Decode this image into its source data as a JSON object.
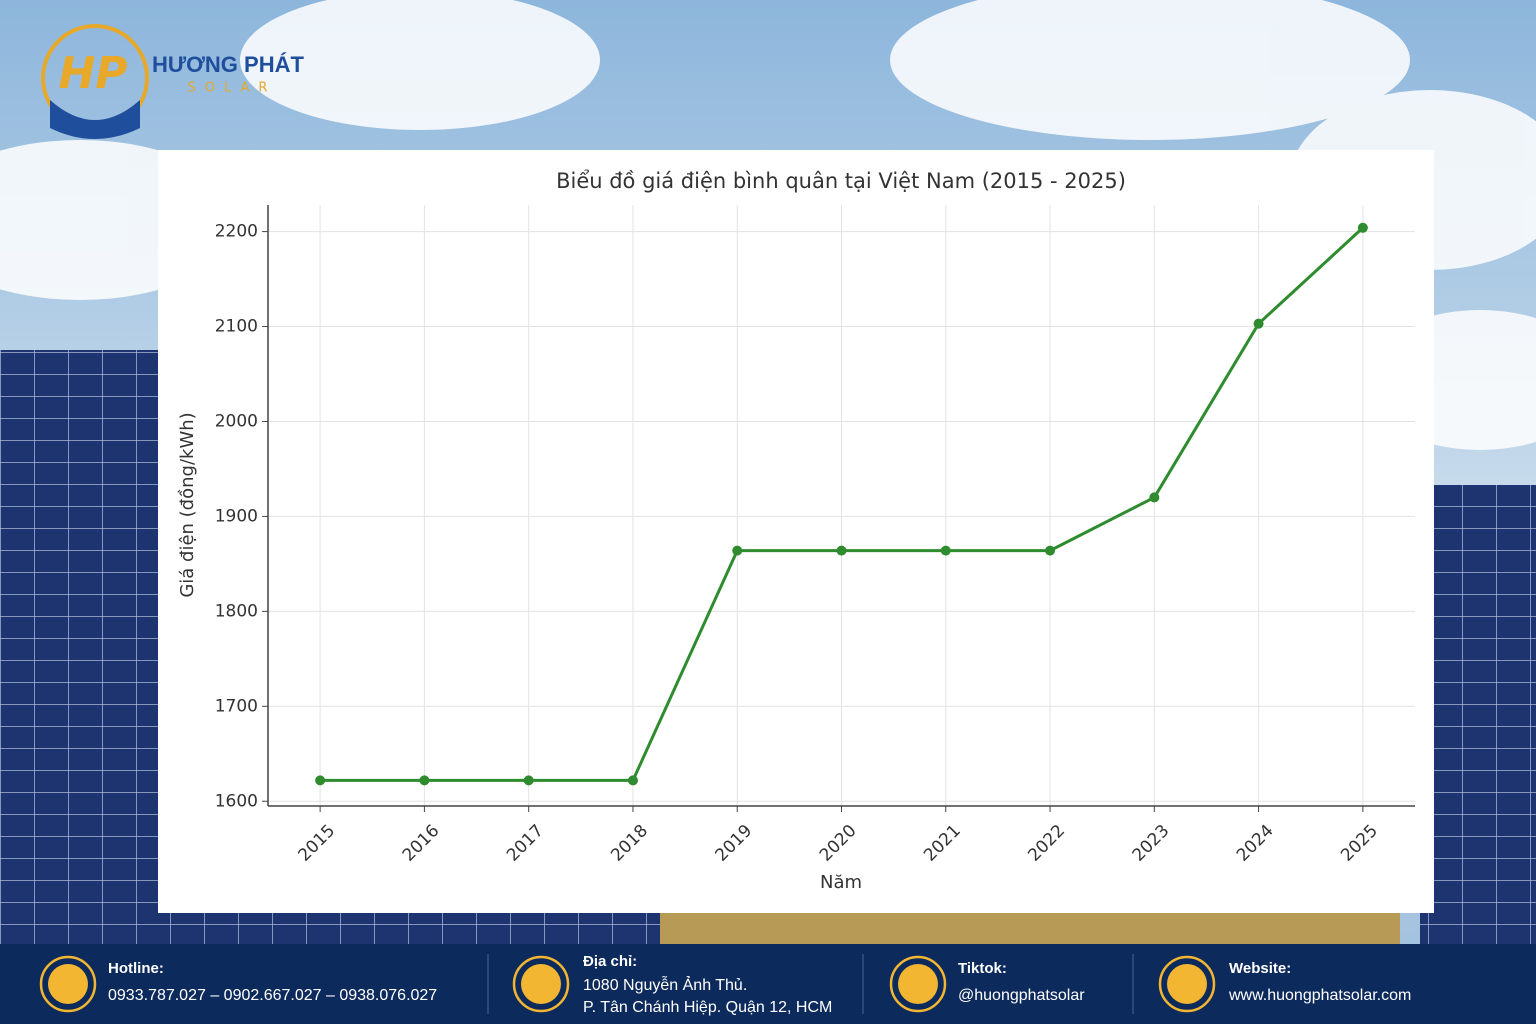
{
  "logo": {
    "mark": "HP",
    "name": "HƯƠNG PHÁT",
    "sub": "SOLAR"
  },
  "chart_data": {
    "type": "line",
    "title": "Biểu đồ giá điện bình quân tại Việt Nam (2015 - 2025)",
    "x_label": "Năm",
    "y_label": "Giá điện (đồng/kWh)",
    "x": [
      2015,
      2016,
      2017,
      2018,
      2019,
      2020,
      2021,
      2022,
      2023,
      2024,
      2025
    ],
    "values": [
      1622,
      1622,
      1622,
      1622,
      1864,
      1864,
      1864,
      1864,
      1920,
      2103,
      2204
    ],
    "color": "#2e8b2e",
    "xlim": [
      2014.5,
      2025.5
    ],
    "xticks": [
      2015,
      2016,
      2017,
      2018,
      2019,
      2020,
      2021,
      2022,
      2023,
      2024,
      2025
    ],
    "ylim": [
      1595,
      2228
    ],
    "yticks": [
      1600,
      1700,
      1800,
      1900,
      2000,
      2100,
      2200
    ],
    "grid": true
  },
  "footer": {
    "items": [
      {
        "label": "Hotline:",
        "lines": [
          "0933.787.027 – 0902.667.027 – 0938.076.027"
        ]
      },
      {
        "label": "Địa chỉ:",
        "lines": [
          "1080 Nguyễn Ảnh Thủ.",
          "P. Tân Chánh Hiệp. Quận 12, HCM"
        ]
      },
      {
        "label": "Tiktok:",
        "lines": [
          "@huongphatsolar"
        ]
      },
      {
        "label": "Website:",
        "lines": [
          "www.huongphatsolar.com"
        ]
      }
    ]
  }
}
